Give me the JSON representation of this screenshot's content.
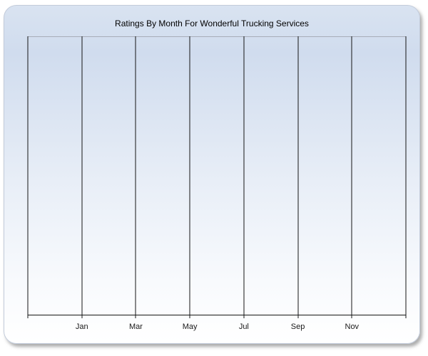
{
  "page": {
    "background_color": "#ffffff"
  },
  "panel": {
    "title": "Ratings By Month For Wonderful Trucking Services",
    "colors": {
      "background_top": "#d9e3f1",
      "background_mid_blue": "#d0dcee",
      "background_mid": "#e8eef7",
      "background_bottom": "#ffffff",
      "panel_border": "#c2cbda",
      "plot_top_border": "#a7adb8",
      "gridline": "#151515",
      "axis_line": "#151515",
      "title_text": "#000000",
      "tick_label_text": "#1a1a1a"
    }
  },
  "chart_data": {
    "type": "line",
    "title": "Ratings By Month For Wonderful Trucking Services",
    "categories": [
      "Jan",
      "Mar",
      "May",
      "Jul",
      "Sep",
      "Nov"
    ],
    "series": [],
    "x_gridline_count": 8,
    "x_tick_interval_months": 2,
    "grid": "vertical-only",
    "legend": "none",
    "xlabel": "",
    "ylabel": "",
    "y_tick_labels": [],
    "plot_state": "empty - no data points rendered"
  }
}
